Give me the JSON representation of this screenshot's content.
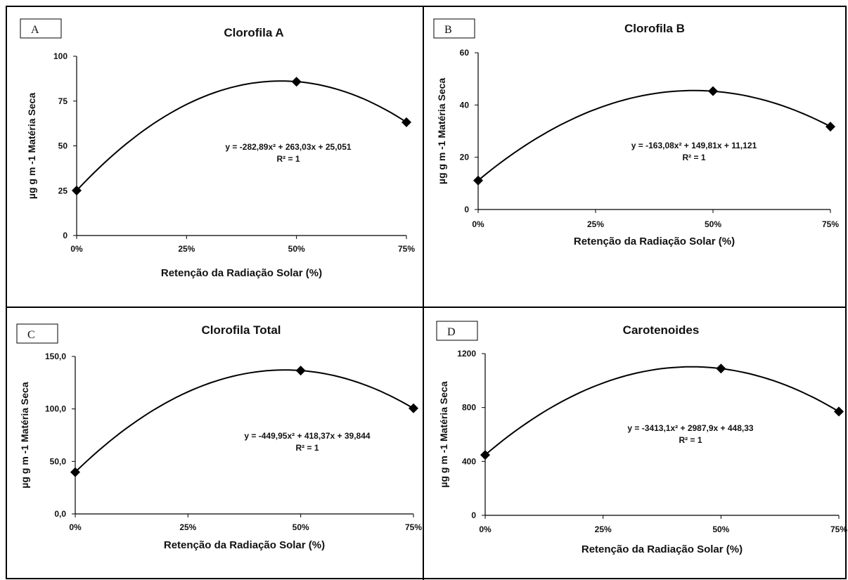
{
  "panels": [
    {
      "letter": "A",
      "title": "Clorofila A",
      "ylabel": "µg g m -1 Matéria Seca",
      "xlabel": "Retenção da Radiação Solar (%)",
      "equation": "y = -282,89x² + 263,03x + 25,051",
      "r2": "R² = 1"
    },
    {
      "letter": "B",
      "title": "Clorofila B",
      "ylabel": "µg g m -1 Matéria Seca",
      "xlabel": "Retenção da Radiação Solar (%)",
      "equation": "y = -163,08x² + 149,81x + 11,121",
      "r2": "R² = 1"
    },
    {
      "letter": "C",
      "title": "Clorofila Total",
      "ylabel": "µg g m -1 Matéria Seca",
      "xlabel": "Retenção da Radiação Solar (%)",
      "equation": "y = -449,95x² + 418,37x + 39,844",
      "r2": "R² = 1"
    },
    {
      "letter": "D",
      "title": "Carotenoides",
      "ylabel": "µg g m -1 Matéria Seca",
      "xlabel": "Retenção da Radiação Solar (%)",
      "equation": "y = -3413,1x² + 2987,9x + 448,33",
      "r2": "R² = 1"
    }
  ],
  "chart_data": [
    {
      "type": "scatter",
      "title": "Clorofila A",
      "xlabel": "Retenção da Radiação Solar (%)",
      "ylabel": "µg g m -1 Matéria Seca",
      "x": [
        0,
        0.5,
        0.75
      ],
      "x_tick_labels": [
        "0%",
        "25%",
        "50%",
        "75%"
      ],
      "x_ticks": [
        0,
        0.25,
        0.5,
        0.75
      ],
      "values": [
        25.1,
        85.8,
        63.2
      ],
      "ylim": [
        0,
        100
      ],
      "y_ticks": [
        0,
        25,
        50,
        75,
        100
      ],
      "y_tick_labels": [
        "0",
        "25",
        "50",
        "75",
        "100"
      ],
      "trendline": {
        "type": "polynomial",
        "coefficients": [
          -282.89,
          263.03,
          25.051
        ]
      }
    },
    {
      "type": "scatter",
      "title": "Clorofila B",
      "xlabel": "Retenção da Radiação Solar (%)",
      "ylabel": "µg g m -1 Matéria Seca",
      "x": [
        0,
        0.5,
        0.75
      ],
      "x_tick_labels": [
        "0%",
        "25%",
        "50%",
        "75%"
      ],
      "x_ticks": [
        0,
        0.25,
        0.5,
        0.75
      ],
      "values": [
        11.1,
        45.3,
        31.7
      ],
      "ylim": [
        0,
        60
      ],
      "y_ticks": [
        0,
        20,
        40,
        60
      ],
      "y_tick_labels": [
        "0",
        "20",
        "40",
        "60"
      ],
      "trendline": {
        "type": "polynomial",
        "coefficients": [
          -163.08,
          149.81,
          11.121
        ]
      }
    },
    {
      "type": "scatter",
      "title": "Clorofila Total",
      "xlabel": "Retenção da Radiação Solar (%)",
      "ylabel": "µg g m -1 Matéria Seca",
      "x": [
        0,
        0.5,
        0.75
      ],
      "x_tick_labels": [
        "0%",
        "25%",
        "50%",
        "75%"
      ],
      "x_ticks": [
        0,
        0.25,
        0.5,
        0.75
      ],
      "values": [
        39.8,
        136.5,
        100.6
      ],
      "ylim": [
        0,
        150
      ],
      "y_ticks": [
        0,
        50,
        100,
        150
      ],
      "y_tick_labels": [
        "0,0",
        "50,0",
        "100,0",
        "150,0"
      ],
      "trendline": {
        "type": "polynomial",
        "coefficients": [
          -449.95,
          418.37,
          39.844
        ]
      }
    },
    {
      "type": "scatter",
      "title": "Carotenoides",
      "xlabel": "Retenção da Radiação Solar (%)",
      "ylabel": "µg g m -1 Matéria Seca",
      "x": [
        0,
        0.5,
        0.75
      ],
      "x_tick_labels": [
        "0%",
        "25%",
        "50%",
        "75%"
      ],
      "x_ticks": [
        0,
        0.25,
        0.5,
        0.75
      ],
      "values": [
        448.3,
        1089,
        770
      ],
      "ylim": [
        0,
        1200
      ],
      "y_ticks": [
        0,
        400,
        800,
        1200
      ],
      "y_tick_labels": [
        "0",
        "400",
        "800",
        "1200"
      ],
      "trendline": {
        "type": "polynomial",
        "coefficients": [
          -3413.1,
          2987.9,
          448.33
        ]
      }
    }
  ]
}
